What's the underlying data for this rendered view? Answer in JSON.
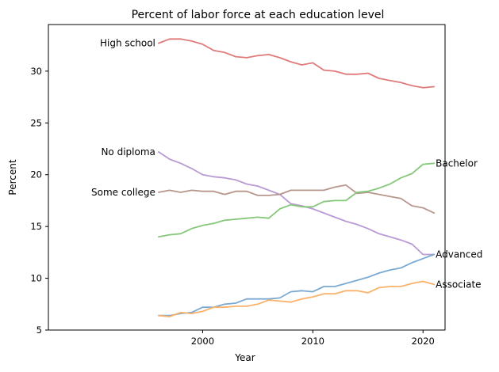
{
  "chart_data": {
    "type": "line",
    "title": "Percent of labor force at each education level",
    "xlabel": "Year",
    "ylabel": "Percent",
    "xlim": [
      1986,
      2022
    ],
    "ylim": [
      5,
      34.5
    ],
    "xticks": [
      2000,
      2010,
      2020
    ],
    "yticks": [
      5,
      10,
      15,
      20,
      25,
      30
    ],
    "grid": false,
    "legend": "none (series labeled directly on lines)",
    "x": [
      1996,
      1997,
      1998,
      1999,
      2000,
      2001,
      2002,
      2003,
      2004,
      2005,
      2006,
      2007,
      2008,
      2009,
      2010,
      2011,
      2012,
      2013,
      2014,
      2015,
      2016,
      2017,
      2018,
      2019,
      2020,
      2021
    ],
    "series": [
      {
        "name": "High school",
        "color": "#e07b7b",
        "label_side": "left",
        "values": [
          32.7,
          33.1,
          33.1,
          32.9,
          32.6,
          32.0,
          31.8,
          31.4,
          31.3,
          31.5,
          31.6,
          31.3,
          30.9,
          30.6,
          30.8,
          30.1,
          30.0,
          29.7,
          29.7,
          29.8,
          29.3,
          29.1,
          28.9,
          28.6,
          28.4,
          28.5
        ]
      },
      {
        "name": "No diploma",
        "color": "#b99ad4",
        "label_side": "left",
        "values": [
          22.2,
          21.5,
          21.1,
          20.6,
          20.0,
          19.8,
          19.7,
          19.5,
          19.1,
          18.9,
          18.5,
          18.1,
          17.2,
          17.0,
          16.7,
          16.3,
          15.9,
          15.5,
          15.2,
          14.8,
          14.3,
          14.0,
          13.7,
          13.3,
          12.3,
          12.3
        ]
      },
      {
        "name": "Some college",
        "color": "#b8968c",
        "label_side": "left",
        "values": [
          18.3,
          18.5,
          18.3,
          18.5,
          18.4,
          18.4,
          18.1,
          18.4,
          18.4,
          18.0,
          18.0,
          18.1,
          18.5,
          18.5,
          18.5,
          18.5,
          18.8,
          19.0,
          18.2,
          18.3,
          18.1,
          17.9,
          17.7,
          17.0,
          16.8,
          16.3
        ]
      },
      {
        "name": "Bachelor",
        "color": "#86c87a",
        "label_side": "right",
        "values": [
          14.0,
          14.2,
          14.3,
          14.8,
          15.1,
          15.3,
          15.6,
          15.7,
          15.8,
          15.9,
          15.8,
          16.7,
          17.1,
          16.9,
          16.9,
          17.4,
          17.5,
          17.5,
          18.3,
          18.4,
          18.7,
          19.1,
          19.7,
          20.1,
          21.0,
          21.1
        ]
      },
      {
        "name": "Advanced",
        "color": "#7aaad2",
        "label_side": "right",
        "values": [
          6.4,
          6.4,
          6.6,
          6.7,
          7.2,
          7.2,
          7.5,
          7.6,
          8.0,
          8.0,
          8.0,
          8.1,
          8.7,
          8.8,
          8.7,
          9.2,
          9.2,
          9.5,
          9.8,
          10.1,
          10.5,
          10.8,
          11.0,
          11.5,
          11.9,
          12.3
        ]
      },
      {
        "name": "Associate",
        "color": "#f9b26b",
        "label_side": "right",
        "values": [
          6.4,
          6.3,
          6.7,
          6.6,
          6.8,
          7.2,
          7.2,
          7.3,
          7.3,
          7.5,
          7.9,
          7.8,
          7.7,
          8.0,
          8.2,
          8.5,
          8.5,
          8.8,
          8.8,
          8.6,
          9.1,
          9.2,
          9.2,
          9.5,
          9.7,
          9.4
        ]
      }
    ]
  }
}
